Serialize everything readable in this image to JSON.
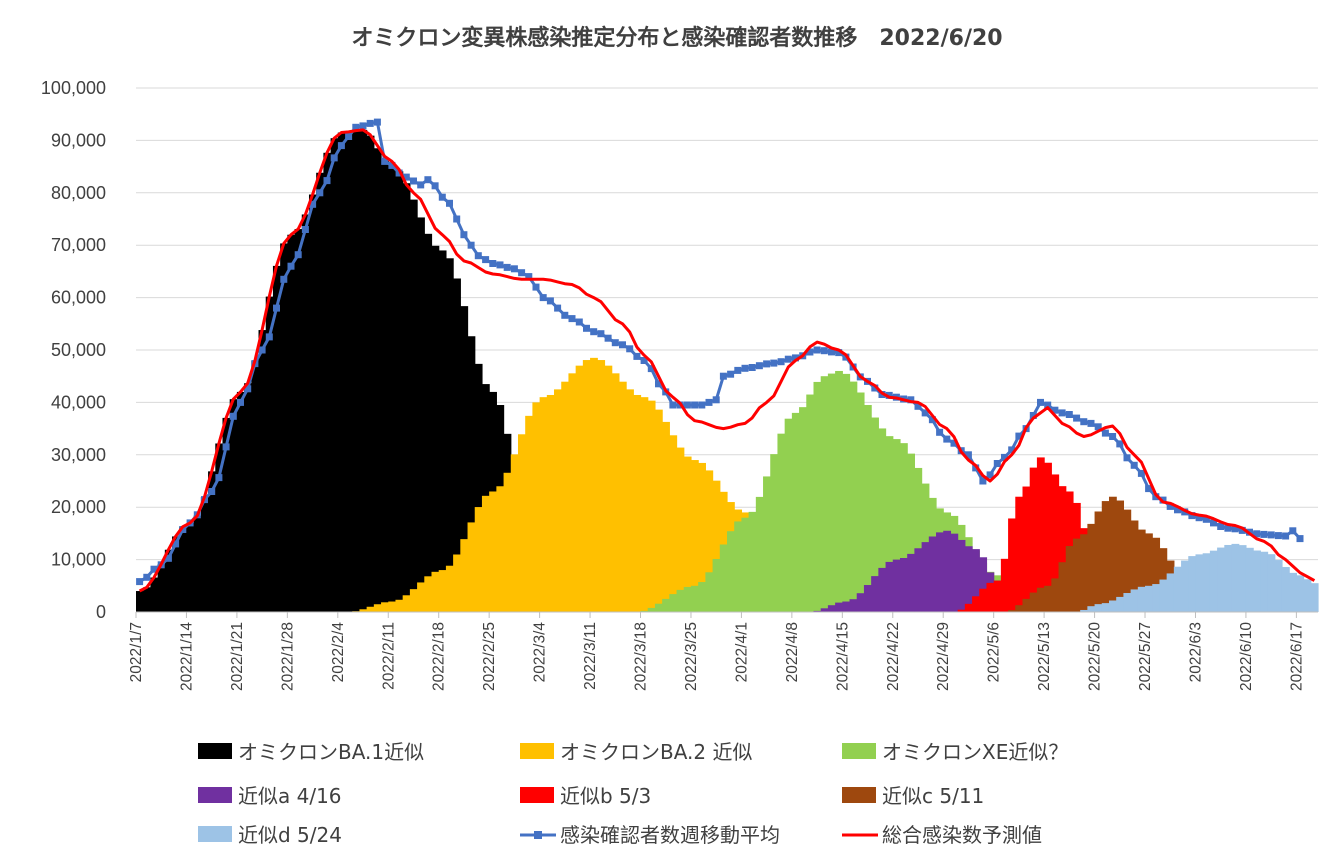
{
  "chart_data": {
    "type": "area",
    "title": "オミクロン変異株感染推定分布と感染確認者数推移　2022/6/20",
    "ylim": [
      0,
      100000
    ],
    "y_ticks": [
      "0",
      "10,000",
      "20,000",
      "30,000",
      "40,000",
      "50,000",
      "60,000",
      "70,000",
      "80,000",
      "90,000",
      "100,000"
    ],
    "x_start": "2022/1/7",
    "x_end": "2022/6/19",
    "x_ticks": [
      "2022/1/7",
      "2022/1/14",
      "2022/1/21",
      "2022/1/28",
      "2022/2/4",
      "2022/2/11",
      "2022/2/18",
      "2022/2/25",
      "2022/3/4",
      "2022/3/11",
      "2022/3/18",
      "2022/3/25",
      "2022/4/1",
      "2022/4/8",
      "2022/4/15",
      "2022/4/22",
      "2022/4/29",
      "2022/5/6",
      "2022/5/13",
      "2022/5/20",
      "2022/5/27",
      "2022/6/3",
      "2022/6/10",
      "2022/6/17"
    ],
    "grid": true,
    "legend_position": "bottom",
    "series": [
      {
        "name": "オミクロンBA.1近似",
        "kind": "bars",
        "color": "#000000",
        "points": [
          [
            "2022/1/7",
            4000
          ],
          [
            "2022/1/14",
            17000
          ],
          [
            "2022/1/21",
            42000
          ],
          [
            "2022/1/28",
            72000
          ],
          [
            "2022/2/4",
            91500
          ],
          [
            "2022/2/7",
            92000
          ],
          [
            "2022/2/11",
            85000
          ],
          [
            "2022/2/18",
            69000
          ],
          [
            "2022/2/25",
            42000
          ],
          [
            "2022/3/1",
            26000
          ],
          [
            "2022/3/4",
            16000
          ],
          [
            "2022/3/11",
            6000
          ],
          [
            "2022/3/18",
            2000
          ],
          [
            "2022/3/25",
            500
          ],
          [
            "2022/3/28",
            0
          ]
        ]
      },
      {
        "name": "オミクロンBA.2 近似",
        "kind": "bars",
        "color": "#ffc000",
        "points": [
          [
            "2022/2/5",
            0
          ],
          [
            "2022/2/11",
            2000
          ],
          [
            "2022/2/18",
            8000
          ],
          [
            "2022/2/25",
            23000
          ],
          [
            "2022/3/4",
            41000
          ],
          [
            "2022/3/11",
            48500
          ],
          [
            "2022/3/18",
            41000
          ],
          [
            "2022/3/25",
            29000
          ],
          [
            "2022/4/1",
            19000
          ],
          [
            "2022/4/8",
            10000
          ],
          [
            "2022/4/15",
            5000
          ],
          [
            "2022/4/22",
            2000
          ],
          [
            "2022/4/29",
            0
          ]
        ]
      },
      {
        "name": "オミクロンXE近似？",
        "kind": "bars",
        "color": "#92d050",
        "points": [
          [
            "2022/3/17",
            0
          ],
          [
            "2022/3/25",
            5000
          ],
          [
            "2022/4/1",
            18000
          ],
          [
            "2022/4/8",
            38000
          ],
          [
            "2022/4/12",
            45000
          ],
          [
            "2022/4/14",
            46000
          ],
          [
            "2022/4/22",
            33000
          ],
          [
            "2022/4/29",
            19000
          ],
          [
            "2022/5/6",
            7000
          ],
          [
            "2022/5/13",
            2000
          ],
          [
            "2022/5/20",
            500
          ],
          [
            "2022/5/25",
            0
          ]
        ]
      },
      {
        "name": "近似a 4/16",
        "kind": "bars",
        "color": "#7030a0",
        "points": [
          [
            "2022/4/10",
            0
          ],
          [
            "2022/4/15",
            2000
          ],
          [
            "2022/4/22",
            10000
          ],
          [
            "2022/4/29",
            15500
          ],
          [
            "2022/5/3",
            12000
          ],
          [
            "2022/5/6",
            6000
          ],
          [
            "2022/5/13",
            1000
          ],
          [
            "2022/5/16",
            0
          ]
        ]
      },
      {
        "name": "近似b 5/3",
        "kind": "bars",
        "color": "#ff0000",
        "points": [
          [
            "2022/4/30",
            0
          ],
          [
            "2022/5/6",
            6000
          ],
          [
            "2022/5/9",
            22000
          ],
          [
            "2022/5/12",
            29500
          ],
          [
            "2022/5/16",
            23000
          ],
          [
            "2022/5/20",
            9000
          ],
          [
            "2022/5/24",
            2000
          ],
          [
            "2022/5/27",
            0
          ]
        ]
      },
      {
        "name": "近似c 5/11",
        "kind": "bars",
        "color": "#9e480e",
        "points": [
          [
            "2022/5/7",
            0
          ],
          [
            "2022/5/13",
            5000
          ],
          [
            "2022/5/17",
            14000
          ],
          [
            "2022/5/22",
            22000
          ],
          [
            "2022/5/27",
            15000
          ],
          [
            "2022/6/1",
            7000
          ],
          [
            "2022/6/5",
            2000
          ],
          [
            "2022/6/10",
            0
          ]
        ]
      },
      {
        "name": "近似d 5/24",
        "kind": "bars",
        "color": "#9dc3e6",
        "points": [
          [
            "2022/5/17",
            0
          ],
          [
            "2022/5/20",
            1500
          ],
          [
            "2022/5/27",
            5000
          ],
          [
            "2022/6/3",
            11000
          ],
          [
            "2022/6/8",
            13000
          ],
          [
            "2022/6/12",
            11500
          ],
          [
            "2022/6/17",
            7000
          ],
          [
            "2022/6/19",
            5500
          ]
        ]
      },
      {
        "name": "感染確認者数週移動平均",
        "kind": "line-markers",
        "color": "#4472c4",
        "points": [
          [
            "2022/1/7",
            5800
          ],
          [
            "2022/1/10",
            9000
          ],
          [
            "2022/1/14",
            17000
          ],
          [
            "2022/1/17",
            23000
          ],
          [
            "2022/1/21",
            40000
          ],
          [
            "2022/1/24",
            50000
          ],
          [
            "2022/1/28",
            66000
          ],
          [
            "2022/2/1",
            80000
          ],
          [
            "2022/2/4",
            89000
          ],
          [
            "2022/2/6",
            92500
          ],
          [
            "2022/2/9",
            93500
          ],
          [
            "2022/2/10",
            86000
          ],
          [
            "2022/2/13",
            83000
          ],
          [
            "2022/2/15",
            81500
          ],
          [
            "2022/2/16",
            82500
          ],
          [
            "2022/2/19",
            78000
          ],
          [
            "2022/2/21",
            72000
          ],
          [
            "2022/2/23",
            68000
          ],
          [
            "2022/2/25",
            66500
          ],
          [
            "2022/2/28",
            65500
          ],
          [
            "2022/3/2",
            64000
          ],
          [
            "2022/3/4",
            60000
          ],
          [
            "2022/3/8",
            56000
          ],
          [
            "2022/3/11",
            53500
          ],
          [
            "2022/3/15",
            51000
          ],
          [
            "2022/3/18",
            48000
          ],
          [
            "2022/3/21",
            42000
          ],
          [
            "2022/3/22",
            39500
          ],
          [
            "2022/3/26",
            39500
          ],
          [
            "2022/3/28",
            40500
          ],
          [
            "2022/3/29",
            45000
          ],
          [
            "2022/4/1",
            46500
          ],
          [
            "2022/4/5",
            47500
          ],
          [
            "2022/4/8",
            48500
          ],
          [
            "2022/4/11",
            50000
          ],
          [
            "2022/4/14",
            49500
          ],
          [
            "2022/4/18",
            44000
          ],
          [
            "2022/4/20",
            41500
          ],
          [
            "2022/4/24",
            40500
          ],
          [
            "2022/4/26",
            38000
          ],
          [
            "2022/4/29",
            33000
          ],
          [
            "2022/5/2",
            30000
          ],
          [
            "2022/5/4",
            25000
          ],
          [
            "2022/5/7",
            29500
          ],
          [
            "2022/5/10",
            35000
          ],
          [
            "2022/5/12",
            40000
          ],
          [
            "2022/5/15",
            38000
          ],
          [
            "2022/5/19",
            36000
          ],
          [
            "2022/5/22",
            33500
          ],
          [
            "2022/5/25",
            28000
          ],
          [
            "2022/5/28",
            22000
          ],
          [
            "2022/5/31",
            19500
          ],
          [
            "2022/6/3",
            18000
          ],
          [
            "2022/6/7",
            16000
          ],
          [
            "2022/6/12",
            14800
          ],
          [
            "2022/6/15",
            14500
          ],
          [
            "2022/6/16",
            15500
          ],
          [
            "2022/6/17",
            14000
          ]
        ]
      },
      {
        "name": "総合感染数予測値",
        "kind": "line",
        "color": "#ff0000",
        "points": [
          [
            "2022/1/7",
            4000
          ],
          [
            "2022/1/14",
            17000
          ],
          [
            "2022/1/21",
            42000
          ],
          [
            "2022/1/28",
            72000
          ],
          [
            "2022/2/4",
            91500
          ],
          [
            "2022/2/7",
            92000
          ],
          [
            "2022/2/11",
            86000
          ],
          [
            "2022/2/14",
            80000
          ],
          [
            "2022/2/18",
            72000
          ],
          [
            "2022/2/21",
            67000
          ],
          [
            "2022/2/25",
            64500
          ],
          [
            "2022/3/1",
            63500
          ],
          [
            "2022/3/4",
            63500
          ],
          [
            "2022/3/8",
            62500
          ],
          [
            "2022/3/11",
            60000
          ],
          [
            "2022/3/15",
            55000
          ],
          [
            "2022/3/18",
            49000
          ],
          [
            "2022/3/22",
            41000
          ],
          [
            "2022/3/25",
            36500
          ],
          [
            "2022/3/29",
            35000
          ],
          [
            "2022/4/1",
            36000
          ],
          [
            "2022/4/4",
            40000
          ],
          [
            "2022/4/8",
            48000
          ],
          [
            "2022/4/11",
            51500
          ],
          [
            "2022/4/14",
            50000
          ],
          [
            "2022/4/18",
            44000
          ],
          [
            "2022/4/21",
            41000
          ],
          [
            "2022/4/25",
            40000
          ],
          [
            "2022/4/29",
            35000
          ],
          [
            "2022/5/2",
            29000
          ],
          [
            "2022/5/5",
            25000
          ],
          [
            "2022/5/8",
            30000
          ],
          [
            "2022/5/11",
            37000
          ],
          [
            "2022/5/13",
            39000
          ],
          [
            "2022/5/15",
            36000
          ],
          [
            "2022/5/18",
            33500
          ],
          [
            "2022/5/22",
            35500
          ],
          [
            "2022/5/25",
            30000
          ],
          [
            "2022/5/29",
            21000
          ],
          [
            "2022/6/3",
            18500
          ],
          [
            "2022/6/8",
            16500
          ],
          [
            "2022/6/12",
            13500
          ],
          [
            "2022/6/15",
            10000
          ],
          [
            "2022/6/17",
            7500
          ],
          [
            "2022/6/19",
            6000
          ]
        ]
      }
    ]
  }
}
